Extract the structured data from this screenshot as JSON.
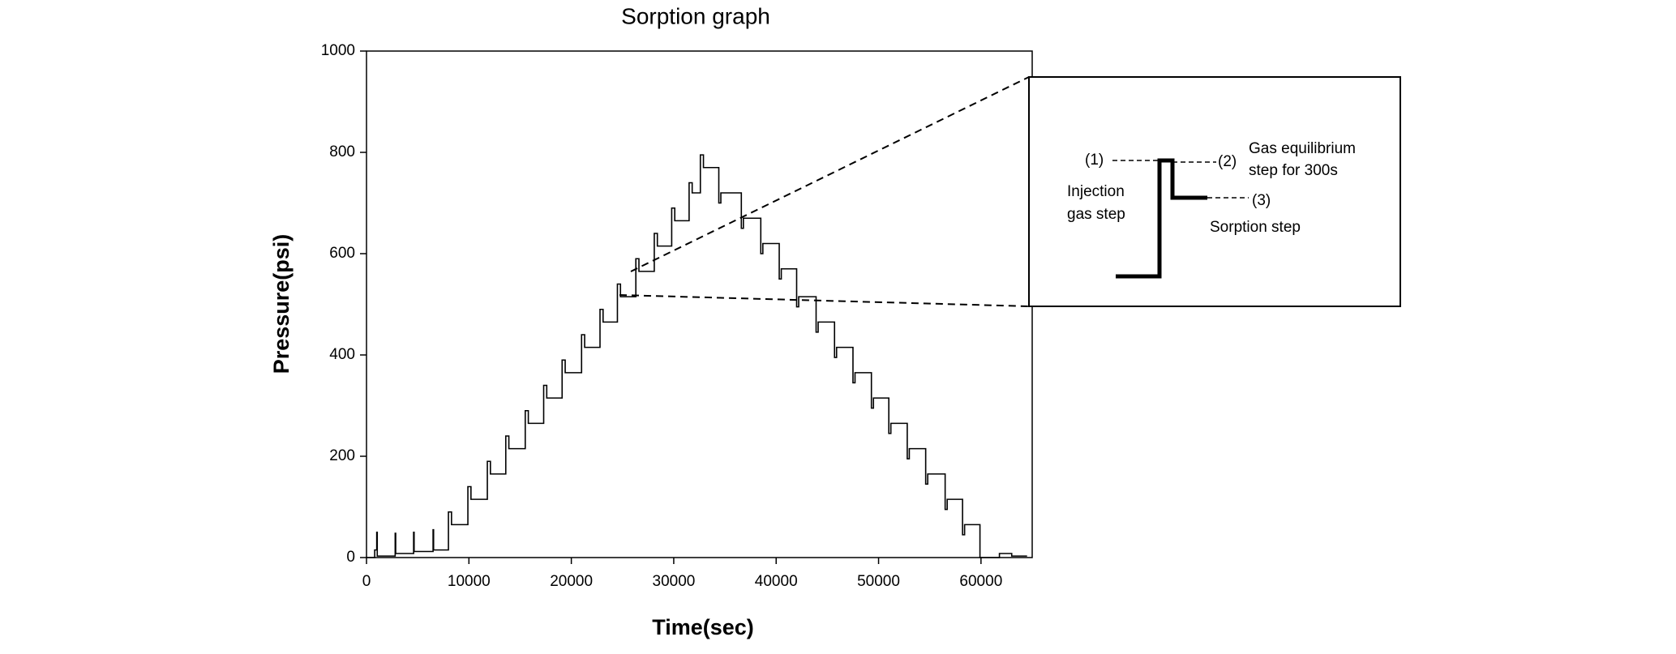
{
  "chart_data": {
    "type": "line",
    "title": "Sorption graph",
    "x_label": "Time(sec)",
    "y_label": "Pressure(psi)",
    "color": "#000000",
    "xlim": [
      0,
      65000
    ],
    "ylim": [
      0,
      1000
    ],
    "xticks": [
      0,
      10000,
      20000,
      30000,
      40000,
      50000,
      60000
    ],
    "yticks": [
      0,
      200,
      400,
      600,
      800,
      1000
    ],
    "x": [
      0,
      800,
      800,
      1000,
      1000,
      1050,
      1050,
      2800,
      2800,
      2850,
      2850,
      4600,
      4600,
      4650,
      4650,
      6500,
      6500,
      6550,
      6550,
      8000,
      8000,
      8300,
      8300,
      9900,
      9900,
      10200,
      10200,
      11800,
      11800,
      12100,
      12100,
      13600,
      13600,
      13900,
      13900,
      15500,
      15500,
      15800,
      15800,
      17300,
      17300,
      17600,
      17600,
      19100,
      19100,
      19400,
      19400,
      21000,
      21000,
      21300,
      21300,
      22800,
      22800,
      23100,
      23100,
      24500,
      24500,
      24800,
      24800,
      26300,
      26300,
      26600,
      26600,
      28100,
      28100,
      28400,
      28400,
      29800,
      29800,
      30100,
      30100,
      31500,
      31500,
      31800,
      31800,
      32600,
      32600,
      32900,
      32900,
      34400,
      34400,
      34600,
      34600,
      36600,
      36600,
      36800,
      36800,
      38500,
      38500,
      38700,
      38700,
      40300,
      40300,
      40500,
      40500,
      42000,
      42000,
      42200,
      42200,
      43900,
      43900,
      44100,
      44100,
      45700,
      45700,
      45900,
      45900,
      47500,
      47500,
      47700,
      47700,
      49300,
      49300,
      49500,
      49500,
      51000,
      51000,
      51200,
      51200,
      52800,
      52800,
      53000,
      53000,
      54600,
      54600,
      54800,
      54800,
      56500,
      56500,
      56700,
      56700,
      58200,
      58200,
      58400,
      58400,
      59900,
      59900,
      61800,
      61800,
      63000,
      63000,
      64500
    ],
    "values": [
      0,
      0,
      15,
      15,
      50,
      50,
      3,
      3,
      48,
      48,
      8,
      8,
      50,
      50,
      12,
      12,
      55,
      55,
      15,
      15,
      90,
      90,
      65,
      65,
      140,
      140,
      115,
      115,
      190,
      190,
      165,
      165,
      240,
      240,
      215,
      215,
      290,
      290,
      265,
      265,
      340,
      340,
      315,
      315,
      390,
      390,
      365,
      365,
      440,
      440,
      415,
      415,
      490,
      490,
      465,
      465,
      540,
      540,
      515,
      515,
      590,
      590,
      565,
      565,
      640,
      640,
      615,
      615,
      690,
      690,
      665,
      665,
      740,
      740,
      720,
      720,
      795,
      795,
      770,
      770,
      700,
      700,
      720,
      720,
      650,
      650,
      670,
      670,
      600,
      600,
      620,
      620,
      550,
      550,
      570,
      570,
      495,
      495,
      515,
      515,
      445,
      445,
      465,
      465,
      395,
      395,
      415,
      415,
      345,
      345,
      365,
      365,
      295,
      295,
      315,
      315,
      245,
      245,
      265,
      265,
      195,
      195,
      215,
      215,
      145,
      145,
      165,
      165,
      95,
      95,
      115,
      115,
      45,
      45,
      65,
      65,
      0,
      0,
      8,
      8,
      3,
      3
    ],
    "annotations": {
      "label1": "(1)",
      "label2": "(2)",
      "label3": "(3)",
      "equilibrium_line1": "Gas equilibrium",
      "equilibrium_line2": "step for 300s",
      "injection_line1": "Injection",
      "injection_line2": "gas step",
      "sorption": "Sorption step"
    }
  }
}
